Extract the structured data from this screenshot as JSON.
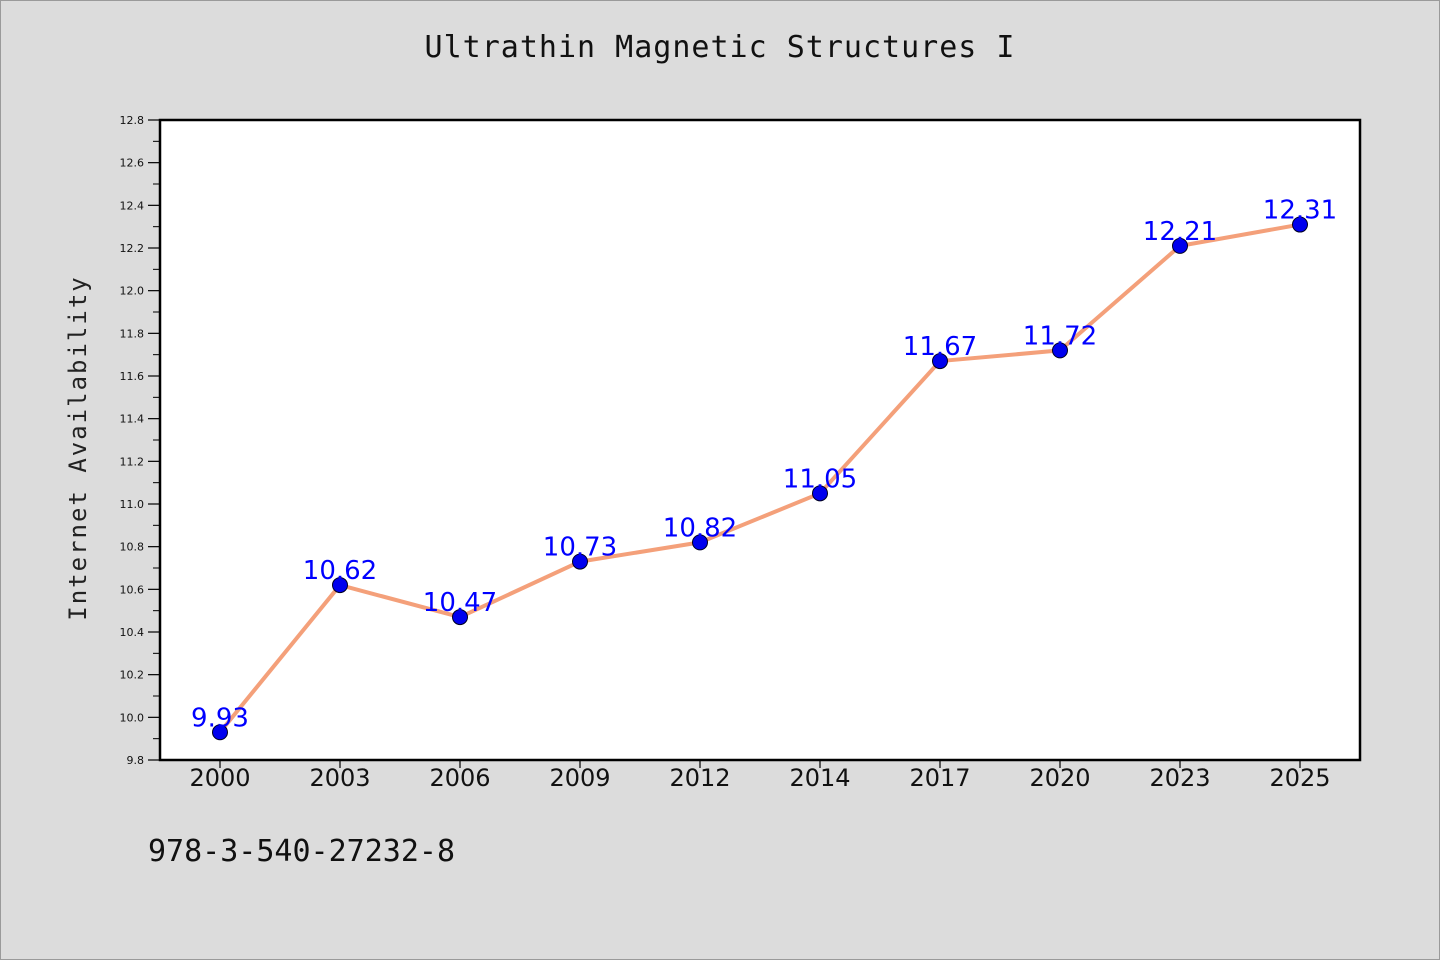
{
  "chart_data": {
    "type": "line",
    "title": "Ultrathin Magnetic Structures I",
    "xlabel": "",
    "ylabel": "Internet Availability",
    "categories": [
      "2000",
      "2003",
      "2006",
      "2009",
      "2012",
      "2014",
      "2017",
      "2020",
      "2023",
      "2025"
    ],
    "series": [
      {
        "values": [
          9.93,
          10.62,
          10.47,
          10.73,
          10.82,
          11.05,
          11.67,
          11.72,
          12.21,
          12.31
        ],
        "line_color": "#f4a07a",
        "marker_color": "#0000ee"
      }
    ],
    "data_labels": [
      "9.93",
      "10.62",
      "10.47",
      "10.73",
      "10.82",
      "11.05",
      "11.67",
      "11.72",
      "12.21",
      "12.31"
    ],
    "ylim": [
      9.8,
      12.8
    ],
    "yticks": [
      "9.8",
      "10.0",
      "10.2",
      "10.4",
      "10.6",
      "10.8",
      "11.0",
      "11.2",
      "11.4",
      "11.6",
      "11.8",
      "12.0",
      "12.2",
      "12.4",
      "12.6",
      "12.8"
    ],
    "grid": false,
    "legend": "none",
    "label_color": "#0000ff"
  },
  "footer": {
    "code": "978-3-540-27232-8"
  }
}
